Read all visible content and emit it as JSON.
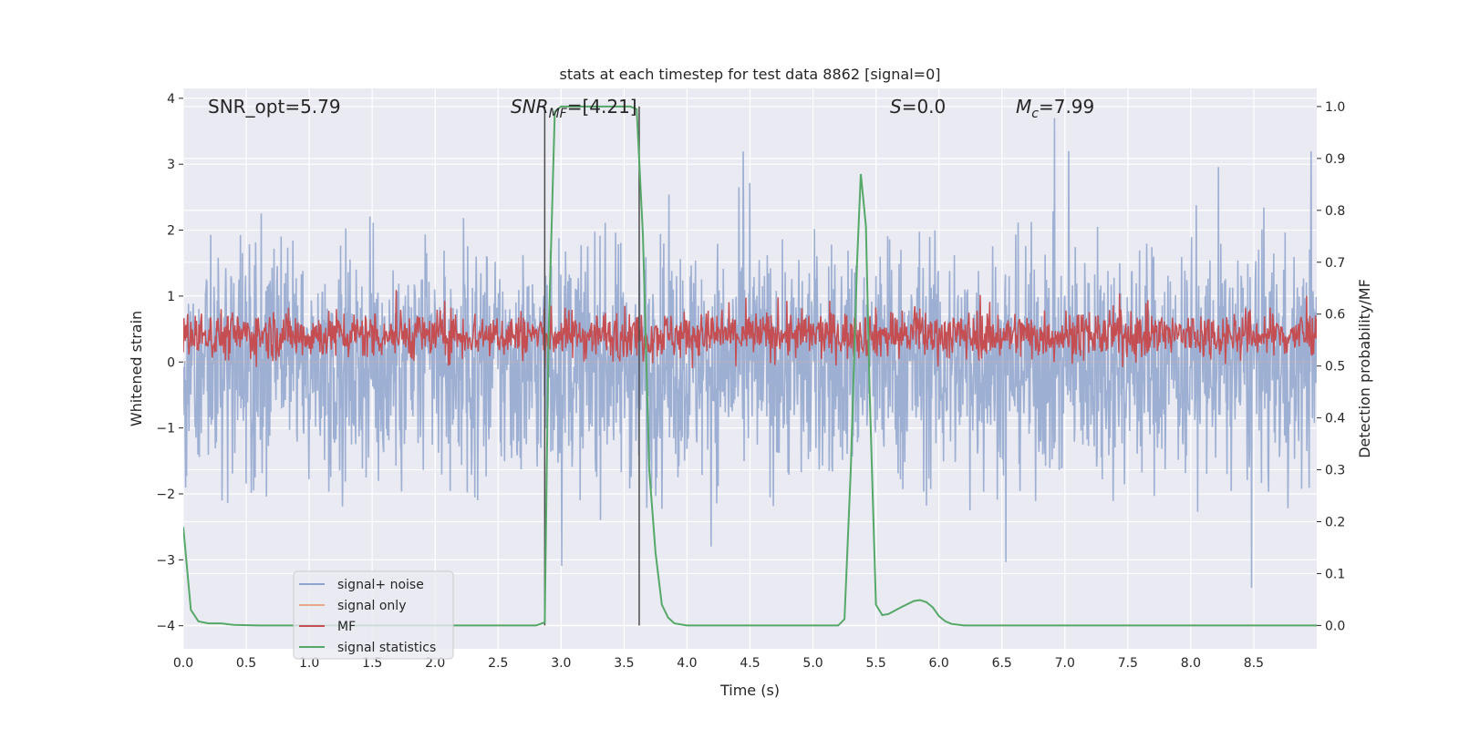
{
  "chart_data": {
    "type": "line",
    "title": "stats at each timestep for test data 8862 [signal=0]",
    "xlabel": "Time (s)",
    "ylabel": "Whitened strain",
    "ylabel_right": "Detection probability/MF",
    "xlim": [
      0,
      9.0
    ],
    "ylim": [
      -4.35,
      4.15
    ],
    "ylim_right": [
      -0.045,
      1.035
    ],
    "x_ticks": [
      "0.0",
      "0.5",
      "1.0",
      "1.5",
      "2.0",
      "2.5",
      "3.0",
      "3.5",
      "4.0",
      "4.5",
      "5.0",
      "5.5",
      "6.0",
      "6.5",
      "7.0",
      "7.5",
      "8.0",
      "8.5"
    ],
    "y_ticks": [
      "4",
      "3",
      "2",
      "1",
      "0",
      "−1",
      "−2",
      "−3",
      "−4"
    ],
    "y_ticks_right": [
      "1.0",
      "0.9",
      "0.8",
      "0.7",
      "0.6",
      "0.5",
      "0.4",
      "0.3",
      "0.2",
      "0.1",
      "0.0"
    ],
    "grid": true,
    "legend_position": "lower-left",
    "annotations": {
      "snr_opt": "SNR_opt=5.79",
      "snr_mf_label": "SNR",
      "snr_mf_sub": "MF",
      "snr_mf_value": "=[4.21]",
      "s_label": "S",
      "s_value": "=0.0",
      "mc_label": "M",
      "mc_sub": "c",
      "mc_value": "=7.99"
    },
    "vlines_x": [
      2.87,
      3.62
    ],
    "series": [
      {
        "name": "signal+ noise",
        "color": "#8fa4cc",
        "axis": "left",
        "kind": "noise",
        "envelope_typical": 1.5,
        "envelope_peak": 3.7
      },
      {
        "name": "signal only",
        "color": "#e8a98b",
        "axis": "left",
        "kind": "flat",
        "value": 0.0
      },
      {
        "name": "MF",
        "color": "#c44e52",
        "axis": "right",
        "kind": "noise",
        "center": 0.56,
        "envelope_typical": 0.04,
        "envelope_peak": 0.11
      },
      {
        "name": "signal statistics",
        "color": "#55a868",
        "axis": "right",
        "kind": "line",
        "x": [
          0.0,
          0.06,
          0.12,
          0.2,
          0.3,
          0.4,
          0.6,
          1.0,
          2.0,
          2.8,
          2.87,
          2.9,
          2.95,
          3.0,
          3.2,
          3.4,
          3.55,
          3.6,
          3.65,
          3.7,
          3.75,
          3.8,
          3.85,
          3.9,
          4.0,
          4.5,
          5.0,
          5.2,
          5.25,
          5.3,
          5.35,
          5.38,
          5.42,
          5.45,
          5.5,
          5.55,
          5.6,
          5.7,
          5.8,
          5.85,
          5.9,
          5.95,
          6.0,
          6.05,
          6.1,
          6.2,
          7.0,
          8.0,
          9.0
        ],
        "y": [
          0.19,
          0.03,
          0.008,
          0.004,
          0.004,
          0.001,
          0.0,
          0.0,
          0.0,
          0.0,
          0.006,
          0.55,
          0.99,
          1.0,
          1.0,
          1.0,
          1.0,
          0.995,
          0.75,
          0.3,
          0.14,
          0.04,
          0.015,
          0.004,
          0.0,
          0.0,
          0.0,
          0.0,
          0.012,
          0.3,
          0.7,
          0.87,
          0.77,
          0.45,
          0.04,
          0.02,
          0.022,
          0.035,
          0.047,
          0.049,
          0.045,
          0.035,
          0.018,
          0.008,
          0.003,
          0.0,
          0.0,
          0.0,
          0.0
        ]
      }
    ]
  }
}
